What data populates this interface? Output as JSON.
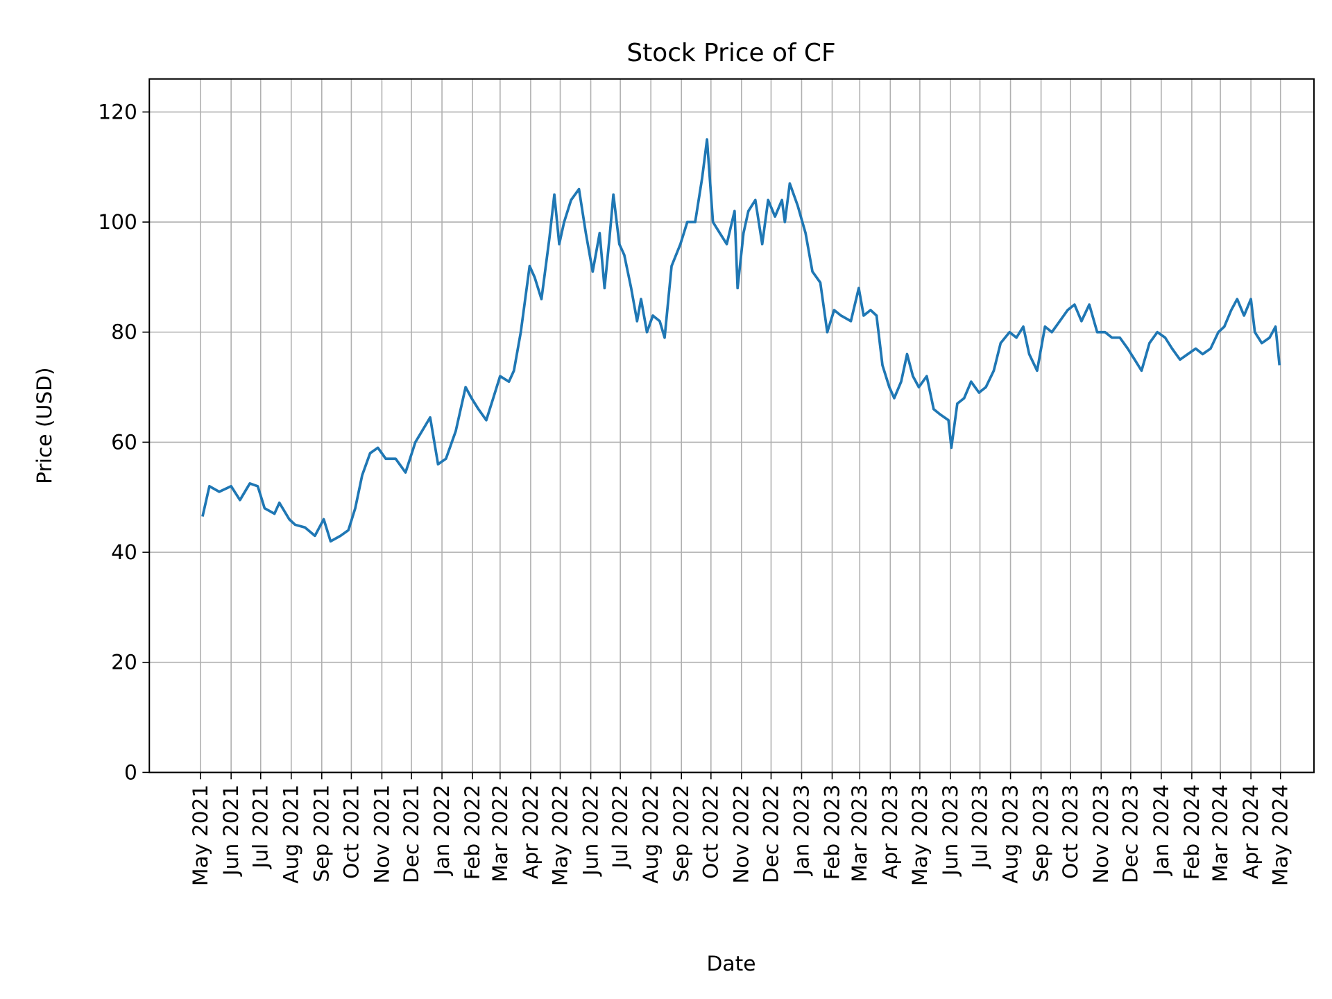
{
  "chart_data": {
    "type": "line",
    "title": "Stock Price of CF",
    "xlabel": "Date",
    "ylabel": "Price (USD)",
    "ylim": [
      0,
      126
    ],
    "yticks": [
      0,
      20,
      40,
      60,
      80,
      100,
      120
    ],
    "xlim": [
      "2021-03-10",
      "2024-06-04"
    ],
    "xticks": [
      {
        "date": "2021-05-01",
        "label": "May 2021"
      },
      {
        "date": "2021-06-01",
        "label": "Jun 2021"
      },
      {
        "date": "2021-07-01",
        "label": "Jul 2021"
      },
      {
        "date": "2021-08-01",
        "label": "Aug 2021"
      },
      {
        "date": "2021-09-01",
        "label": "Sep 2021"
      },
      {
        "date": "2021-10-01",
        "label": "Oct 2021"
      },
      {
        "date": "2021-11-01",
        "label": "Nov 2021"
      },
      {
        "date": "2021-12-01",
        "label": "Dec 2021"
      },
      {
        "date": "2022-01-01",
        "label": "Jan 2022"
      },
      {
        "date": "2022-02-01",
        "label": "Feb 2022"
      },
      {
        "date": "2022-03-01",
        "label": "Mar 2022"
      },
      {
        "date": "2022-04-01",
        "label": "Apr 2022"
      },
      {
        "date": "2022-05-01",
        "label": "May 2022"
      },
      {
        "date": "2022-06-01",
        "label": "Jun 2022"
      },
      {
        "date": "2022-07-01",
        "label": "Jul 2022"
      },
      {
        "date": "2022-08-01",
        "label": "Aug 2022"
      },
      {
        "date": "2022-09-01",
        "label": "Sep 2022"
      },
      {
        "date": "2022-10-01",
        "label": "Oct 2022"
      },
      {
        "date": "2022-11-01",
        "label": "Nov 2022"
      },
      {
        "date": "2022-12-01",
        "label": "Dec 2022"
      },
      {
        "date": "2023-01-01",
        "label": "Jan 2023"
      },
      {
        "date": "2023-02-01",
        "label": "Feb 2023"
      },
      {
        "date": "2023-03-01",
        "label": "Mar 2023"
      },
      {
        "date": "2023-04-01",
        "label": "Apr 2023"
      },
      {
        "date": "2023-05-01",
        "label": "May 2023"
      },
      {
        "date": "2023-06-01",
        "label": "Jun 2023"
      },
      {
        "date": "2023-07-01",
        "label": "Jul 2023"
      },
      {
        "date": "2023-08-01",
        "label": "Aug 2023"
      },
      {
        "date": "2023-09-01",
        "label": "Sep 2023"
      },
      {
        "date": "2023-10-01",
        "label": "Oct 2023"
      },
      {
        "date": "2023-11-01",
        "label": "Nov 2023"
      },
      {
        "date": "2023-12-01",
        "label": "Dec 2023"
      },
      {
        "date": "2024-01-01",
        "label": "Jan 2024"
      },
      {
        "date": "2024-02-01",
        "label": "Feb 2024"
      },
      {
        "date": "2024-03-01",
        "label": "Mar 2024"
      },
      {
        "date": "2024-04-01",
        "label": "Apr 2024"
      },
      {
        "date": "2024-05-01",
        "label": "May 2024"
      }
    ],
    "grid": true,
    "line_color": "#1f77b4",
    "series": [
      {
        "points": [
          [
            "2021-05-03",
            46.5
          ],
          [
            "2021-05-10",
            52
          ],
          [
            "2021-05-20",
            51
          ],
          [
            "2021-06-01",
            52
          ],
          [
            "2021-06-10",
            49.5
          ],
          [
            "2021-06-20",
            52.5
          ],
          [
            "2021-06-28",
            52
          ],
          [
            "2021-07-05",
            48
          ],
          [
            "2021-07-15",
            47
          ],
          [
            "2021-07-20",
            49
          ],
          [
            "2021-07-30",
            46
          ],
          [
            "2021-08-05",
            45
          ],
          [
            "2021-08-15",
            44.5
          ],
          [
            "2021-08-25",
            43
          ],
          [
            "2021-09-03",
            46
          ],
          [
            "2021-09-10",
            42
          ],
          [
            "2021-09-20",
            43
          ],
          [
            "2021-09-28",
            44
          ],
          [
            "2021-10-05",
            48
          ],
          [
            "2021-10-12",
            54
          ],
          [
            "2021-10-20",
            58
          ],
          [
            "2021-10-28",
            59
          ],
          [
            "2021-11-05",
            57
          ],
          [
            "2021-11-15",
            57
          ],
          [
            "2021-11-25",
            54.5
          ],
          [
            "2021-12-05",
            60
          ],
          [
            "2021-12-15",
            63
          ],
          [
            "2021-12-20",
            64.5
          ],
          [
            "2021-12-28",
            56
          ],
          [
            "2022-01-05",
            57
          ],
          [
            "2022-01-15",
            62
          ],
          [
            "2022-01-25",
            70
          ],
          [
            "2022-01-31",
            68
          ],
          [
            "2022-02-07",
            66
          ],
          [
            "2022-02-15",
            64
          ],
          [
            "2022-02-22",
            68
          ],
          [
            "2022-03-01",
            72
          ],
          [
            "2022-03-10",
            71
          ],
          [
            "2022-03-15",
            73
          ],
          [
            "2022-03-22",
            80
          ],
          [
            "2022-03-31",
            92
          ],
          [
            "2022-04-05",
            90
          ],
          [
            "2022-04-12",
            86
          ],
          [
            "2022-04-20",
            97
          ],
          [
            "2022-04-25",
            105
          ],
          [
            "2022-04-30",
            96
          ],
          [
            "2022-05-05",
            100
          ],
          [
            "2022-05-12",
            104
          ],
          [
            "2022-05-20",
            106
          ],
          [
            "2022-05-27",
            98
          ],
          [
            "2022-06-03",
            91
          ],
          [
            "2022-06-10",
            98
          ],
          [
            "2022-06-15",
            88
          ],
          [
            "2022-06-20",
            97
          ],
          [
            "2022-06-24",
            105
          ],
          [
            "2022-06-30",
            96
          ],
          [
            "2022-07-05",
            94
          ],
          [
            "2022-07-12",
            88
          ],
          [
            "2022-07-18",
            82
          ],
          [
            "2022-07-22",
            86
          ],
          [
            "2022-07-28",
            80
          ],
          [
            "2022-08-03",
            83
          ],
          [
            "2022-08-10",
            82
          ],
          [
            "2022-08-15",
            79
          ],
          [
            "2022-08-22",
            92
          ],
          [
            "2022-08-31",
            96
          ],
          [
            "2022-09-07",
            100
          ],
          [
            "2022-09-15",
            100
          ],
          [
            "2022-09-22",
            108
          ],
          [
            "2022-09-27",
            115
          ],
          [
            "2022-10-03",
            100
          ],
          [
            "2022-10-10",
            98
          ],
          [
            "2022-10-17",
            96
          ],
          [
            "2022-10-25",
            102
          ],
          [
            "2022-10-28",
            88
          ],
          [
            "2022-11-03",
            98
          ],
          [
            "2022-11-08",
            102
          ],
          [
            "2022-11-15",
            104
          ],
          [
            "2022-11-22",
            96
          ],
          [
            "2022-11-28",
            104
          ],
          [
            "2022-12-05",
            101
          ],
          [
            "2022-12-12",
            104
          ],
          [
            "2022-12-15",
            100
          ],
          [
            "2022-12-20",
            107
          ],
          [
            "2022-12-28",
            103
          ],
          [
            "2023-01-05",
            98
          ],
          [
            "2023-01-12",
            91
          ],
          [
            "2023-01-20",
            89
          ],
          [
            "2023-01-27",
            80
          ],
          [
            "2023-02-03",
            84
          ],
          [
            "2023-02-10",
            83
          ],
          [
            "2023-02-20",
            82
          ],
          [
            "2023-02-28",
            88
          ],
          [
            "2023-03-05",
            83
          ],
          [
            "2023-03-12",
            84
          ],
          [
            "2023-03-18",
            83
          ],
          [
            "2023-03-24",
            74
          ],
          [
            "2023-03-31",
            70
          ],
          [
            "2023-04-05",
            68
          ],
          [
            "2023-04-12",
            71
          ],
          [
            "2023-04-18",
            76
          ],
          [
            "2023-04-24",
            72
          ],
          [
            "2023-04-30",
            70
          ],
          [
            "2023-05-08",
            72
          ],
          [
            "2023-05-15",
            66
          ],
          [
            "2023-05-22",
            65
          ],
          [
            "2023-05-30",
            64
          ],
          [
            "2023-06-02",
            59
          ],
          [
            "2023-06-08",
            67
          ],
          [
            "2023-06-15",
            68
          ],
          [
            "2023-06-22",
            71
          ],
          [
            "2023-06-30",
            69
          ],
          [
            "2023-07-07",
            70
          ],
          [
            "2023-07-15",
            73
          ],
          [
            "2023-07-22",
            78
          ],
          [
            "2023-07-31",
            80
          ],
          [
            "2023-08-07",
            79
          ],
          [
            "2023-08-14",
            81
          ],
          [
            "2023-08-20",
            76
          ],
          [
            "2023-08-28",
            73
          ],
          [
            "2023-09-05",
            81
          ],
          [
            "2023-09-12",
            80
          ],
          [
            "2023-09-20",
            82
          ],
          [
            "2023-09-28",
            84
          ],
          [
            "2023-10-05",
            85
          ],
          [
            "2023-10-12",
            82
          ],
          [
            "2023-10-20",
            85
          ],
          [
            "2023-10-28",
            80
          ],
          [
            "2023-11-05",
            80
          ],
          [
            "2023-11-12",
            79
          ],
          [
            "2023-11-20",
            79
          ],
          [
            "2023-11-28",
            77
          ],
          [
            "2023-12-05",
            75
          ],
          [
            "2023-12-12",
            73
          ],
          [
            "2023-12-20",
            78
          ],
          [
            "2023-12-28",
            80
          ],
          [
            "2024-01-05",
            79
          ],
          [
            "2024-01-12",
            77
          ],
          [
            "2024-01-20",
            75
          ],
          [
            "2024-01-28",
            76
          ],
          [
            "2024-02-05",
            77
          ],
          [
            "2024-02-12",
            76
          ],
          [
            "2024-02-20",
            77
          ],
          [
            "2024-02-28",
            80
          ],
          [
            "2024-03-05",
            81
          ],
          [
            "2024-03-12",
            84
          ],
          [
            "2024-03-18",
            86
          ],
          [
            "2024-03-25",
            83
          ],
          [
            "2024-04-01",
            86
          ],
          [
            "2024-04-05",
            80
          ],
          [
            "2024-04-12",
            78
          ],
          [
            "2024-04-20",
            79
          ],
          [
            "2024-04-26",
            81
          ],
          [
            "2024-04-30",
            74
          ]
        ]
      }
    ]
  }
}
